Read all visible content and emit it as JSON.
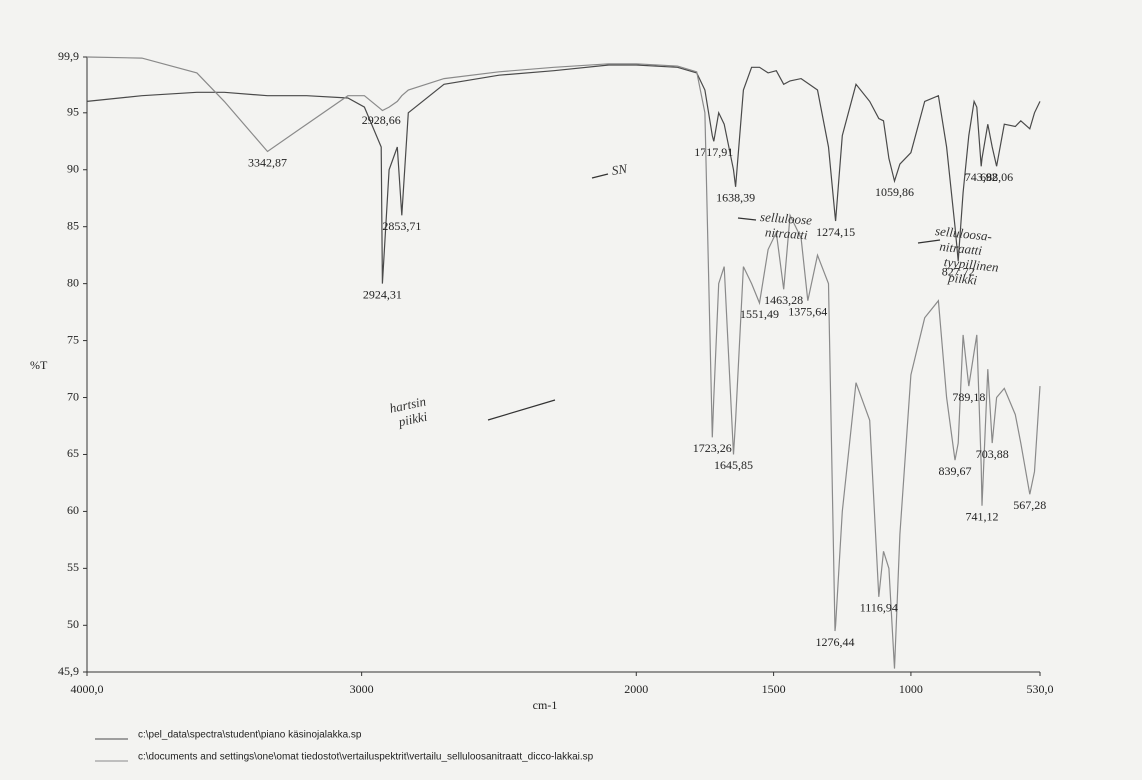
{
  "chart_data": {
    "type": "line",
    "y_label": "%T",
    "x_label": "cm-1",
    "xlim": [
      4000,
      530
    ],
    "ylim": [
      45.9,
      99.9
    ],
    "xticks": [
      {
        "value": 4000,
        "label": "4000,0"
      },
      3000,
      2000,
      1500,
      1000,
      {
        "value": 530,
        "label": "530,0"
      }
    ],
    "yticks": [
      {
        "value": 99.9,
        "label": "99,9"
      },
      95,
      90,
      85,
      80,
      75,
      70,
      65,
      60,
      55,
      50,
      {
        "value": 45.9,
        "label": "45,9"
      }
    ],
    "grid": false,
    "x": [
      4000,
      3800,
      3600,
      3500,
      3342.87,
      3200,
      3050,
      2990,
      2928.66,
      2924.31,
      2900,
      2870,
      2853.71,
      2830,
      2700,
      2500,
      2300,
      2100,
      2000,
      1850,
      1780,
      1750,
      1723.26,
      1717.91,
      1700,
      1680,
      1645.85,
      1638.39,
      1610,
      1580,
      1551.49,
      1520,
      1490,
      1463.28,
      1440,
      1400,
      1375.64,
      1340,
      1300,
      1276.44,
      1274.15,
      1250,
      1200,
      1150,
      1116.94,
      1100,
      1080,
      1059.86,
      1040,
      1000,
      950,
      900,
      870,
      839.67,
      827.72,
      810,
      789.18,
      770,
      760,
      743.92,
      741.12,
      720,
      703.88,
      688.06,
      660,
      620,
      600,
      567.28,
      550,
      530
    ],
    "series": [
      {
        "name": "c:\\pel_data\\spectra\\student\\piano käsinojalakka.sp",
        "color": "#4a4a4a",
        "values": [
          96,
          96.5,
          96.8,
          96.8,
          96.5,
          96.5,
          96.3,
          95.5,
          92,
          80,
          90,
          92,
          86,
          95,
          97.5,
          98.3,
          98.7,
          99.2,
          99.2,
          99,
          98.5,
          97,
          93,
          92.5,
          95,
          94,
          90,
          88.5,
          97,
          99,
          99,
          98.5,
          98.7,
          97.5,
          97.8,
          98,
          97.6,
          97,
          92,
          86,
          85.5,
          93,
          97.5,
          96,
          94.5,
          94.3,
          91,
          89,
          90.5,
          91.5,
          96,
          96.5,
          92,
          85,
          82,
          88,
          93,
          96,
          95.5,
          90.3,
          91,
          94,
          92,
          90.3,
          94,
          93.8,
          94.3,
          93.6,
          95,
          96
        ],
        "peak_labels": [
          "2924,31",
          "2853,71",
          "1717,91",
          "1638,39",
          "1274,15",
          "1059,86",
          "827,72",
          "743,92",
          "688,06"
        ]
      },
      {
        "name": "c:\\documents and settings\\one\\omat tiedostot\\vertailuspektrit\\vertailu_selluloosanitraatt_dicco-lakkai.sp",
        "color": "#8a8a8a",
        "values": [
          99.9,
          99.8,
          98.5,
          96,
          91.6,
          94,
          96.5,
          96.5,
          95.3,
          95.2,
          95.5,
          96,
          96.5,
          97,
          98,
          98.6,
          99,
          99.3,
          99.3,
          99.1,
          98.6,
          95,
          66.5,
          70,
          80,
          81.5,
          65,
          68,
          81.5,
          80,
          78.3,
          83,
          84.5,
          79.5,
          86,
          84,
          78.5,
          82.5,
          80,
          49.5,
          50,
          60,
          71.3,
          68,
          52.5,
          56.5,
          55,
          46.2,
          58,
          72,
          77,
          78.5,
          70,
          64.5,
          66,
          75.5,
          71,
          74,
          75.5,
          64,
          60.5,
          72.5,
          66,
          70,
          70.8,
          68.5,
          66,
          61.5,
          63.5,
          71
        ],
        "peak_labels": [
          "3342,87",
          "2928,66",
          "1723,26",
          "1645,85",
          "1551,49",
          "1463,28",
          "1375,64",
          "1276,44",
          "1116,94",
          "839,67",
          "789,18",
          "741,12",
          "703,88",
          "567,28"
        ]
      }
    ],
    "annotations": [
      {
        "lines": [
          "SN"
        ]
      },
      {
        "lines": [
          "selluloose",
          "nitraatti"
        ]
      },
      {
        "lines": [
          "hartsin",
          "piikki"
        ]
      },
      {
        "lines": [
          "selluloosa-",
          "nitraatti",
          "tyypillinen",
          "piikki"
        ]
      }
    ]
  }
}
